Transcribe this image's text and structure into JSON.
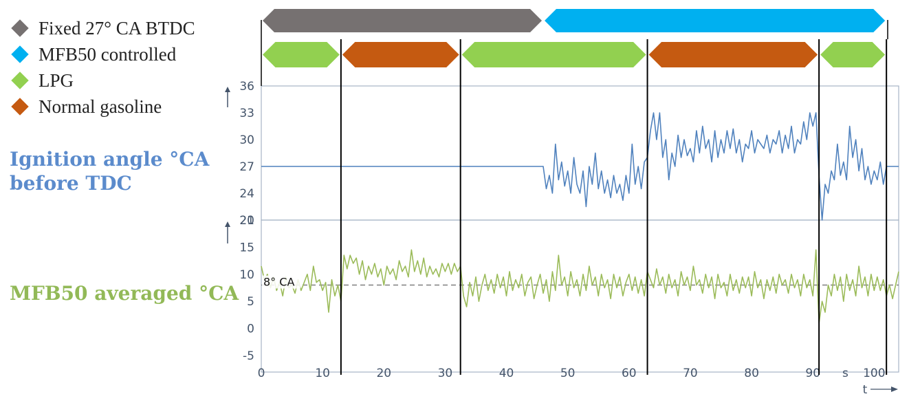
{
  "legend": [
    {
      "label": "Fixed 27° CA BTDC",
      "color": "#767171"
    },
    {
      "label": "MFB50 controlled",
      "color": "#00b0f0"
    },
    {
      "label": "LPG",
      "color": "#92d050"
    },
    {
      "label": "Normal gasoline",
      "color": "#c55a11"
    }
  ],
  "titles": {
    "ignition": "Ignition angle °CA before TDC",
    "mfb50": "MFB50 averaged °CA"
  },
  "chart_data": {
    "type": "line",
    "x_axis": {
      "min": 0,
      "max": 104,
      "ticks": [
        0,
        10,
        20,
        30,
        40,
        50,
        60,
        70,
        80,
        90,
        100
      ],
      "unit": "s",
      "label": "t"
    },
    "mode_bars": [
      {
        "label": "Fixed 27° CA BTDC",
        "from": 0,
        "to": 46,
        "color": "#767171"
      },
      {
        "label": "MFB50 controlled",
        "from": 46,
        "to": 102,
        "color": "#00b0f0"
      }
    ],
    "fuel_bars": [
      {
        "label": "LPG",
        "from": 0,
        "to": 13,
        "color": "#92d050"
      },
      {
        "label": "Normal gasoline",
        "from": 13,
        "to": 32.5,
        "color": "#c55a11"
      },
      {
        "label": "LPG",
        "from": 32.5,
        "to": 63,
        "color": "#92d050"
      },
      {
        "label": "Normal gasoline",
        "from": 63,
        "to": 91,
        "color": "#c55a11"
      },
      {
        "label": "LPG",
        "from": 91,
        "to": 102,
        "color": "#92d050"
      }
    ],
    "vertical_markers": [
      13,
      32.5,
      63,
      91,
      102
    ],
    "ignition": {
      "ylim": [
        21,
        36
      ],
      "yticks": [
        21,
        24,
        27,
        30,
        33,
        36
      ],
      "color": "#4f81bd",
      "points": [
        [
          0,
          27
        ],
        [
          46,
          27
        ],
        [
          46.5,
          24.5
        ],
        [
          47,
          26
        ],
        [
          47.5,
          24
        ],
        [
          48,
          29.5
        ],
        [
          48.5,
          25.5
        ],
        [
          49,
          27.5
        ],
        [
          49.5,
          24.8
        ],
        [
          50,
          26.5
        ],
        [
          50.5,
          24
        ],
        [
          51,
          28
        ],
        [
          51.5,
          25
        ],
        [
          52,
          24
        ],
        [
          52.5,
          26.5
        ],
        [
          53,
          22.5
        ],
        [
          53.5,
          27
        ],
        [
          54,
          25
        ],
        [
          54.5,
          28.5
        ],
        [
          55,
          24.5
        ],
        [
          55.5,
          26.5
        ],
        [
          56,
          24
        ],
        [
          56.5,
          25.5
        ],
        [
          57,
          23.5
        ],
        [
          57.5,
          26
        ],
        [
          58,
          24
        ],
        [
          58.5,
          25
        ],
        [
          59,
          23.2
        ],
        [
          59.5,
          26
        ],
        [
          60,
          24
        ],
        [
          60.5,
          29.5
        ],
        [
          61,
          25
        ],
        [
          61.5,
          27
        ],
        [
          62,
          24.5
        ],
        [
          62.5,
          27.5
        ],
        [
          63,
          28
        ],
        [
          63.5,
          31
        ],
        [
          64,
          33
        ],
        [
          64.5,
          30
        ],
        [
          65,
          33
        ],
        [
          65.5,
          28
        ],
        [
          66,
          30
        ],
        [
          66.5,
          25.5
        ],
        [
          67,
          28.5
        ],
        [
          67.5,
          27
        ],
        [
          68,
          30.5
        ],
        [
          68.5,
          28
        ],
        [
          69,
          30
        ],
        [
          69.5,
          28.2
        ],
        [
          70,
          29
        ],
        [
          70.5,
          27.5
        ],
        [
          71,
          31
        ],
        [
          71.5,
          28.5
        ],
        [
          72,
          31.5
        ],
        [
          72.5,
          29
        ],
        [
          73,
          30
        ],
        [
          73.5,
          27.5
        ],
        [
          74,
          31
        ],
        [
          74.5,
          28
        ],
        [
          75,
          30
        ],
        [
          75.5,
          28.5
        ],
        [
          76,
          31
        ],
        [
          76.5,
          29
        ],
        [
          77,
          31.2
        ],
        [
          77.5,
          28.5
        ],
        [
          78,
          30
        ],
        [
          78.5,
          27.5
        ],
        [
          79,
          29.5
        ],
        [
          79.5,
          29
        ],
        [
          80,
          31
        ],
        [
          80.5,
          28.5
        ],
        [
          81,
          30
        ],
        [
          81.5,
          29.5
        ],
        [
          82,
          29
        ],
        [
          82.5,
          30.5
        ],
        [
          83,
          28.5
        ],
        [
          83.5,
          30
        ],
        [
          84,
          29.5
        ],
        [
          84.5,
          31
        ],
        [
          85,
          28.5
        ],
        [
          85.5,
          30.5
        ],
        [
          86,
          29
        ],
        [
          86.5,
          31.5
        ],
        [
          87,
          28.5
        ],
        [
          87.5,
          30
        ],
        [
          88,
          29.5
        ],
        [
          88.5,
          32
        ],
        [
          89,
          30
        ],
        [
          89.5,
          33
        ],
        [
          90,
          31.5
        ],
        [
          90.5,
          33
        ],
        [
          91,
          26
        ],
        [
          91.5,
          21
        ],
        [
          92,
          25
        ],
        [
          92.5,
          24
        ],
        [
          93,
          26.5
        ],
        [
          93.5,
          25.5
        ],
        [
          94,
          29.5
        ],
        [
          94.5,
          26
        ],
        [
          95,
          27.5
        ],
        [
          95.5,
          25.5
        ],
        [
          96,
          31.5
        ],
        [
          96.5,
          28
        ],
        [
          97,
          30
        ],
        [
          97.5,
          26.5
        ],
        [
          98,
          29
        ],
        [
          98.5,
          25.5
        ],
        [
          99,
          27
        ],
        [
          99.5,
          25
        ],
        [
          100,
          26.5
        ],
        [
          100.5,
          25.5
        ],
        [
          101,
          27.5
        ],
        [
          101.5,
          25
        ],
        [
          102,
          27
        ],
        [
          104,
          27
        ]
      ]
    },
    "mfb50": {
      "ylim": [
        -5,
        20
      ],
      "yticks": [
        -5,
        0,
        5,
        10,
        15,
        20
      ],
      "reference_line": {
        "value": 8,
        "label": "8° CA"
      },
      "color": "#9bbb59",
      "points": [
        [
          0,
          11.5
        ],
        [
          0.5,
          9
        ],
        [
          1,
          10
        ],
        [
          1.5,
          7.5
        ],
        [
          2,
          9.5
        ],
        [
          2.5,
          7
        ],
        [
          3,
          8.5
        ],
        [
          3.5,
          6
        ],
        [
          4,
          9.5
        ],
        [
          4.5,
          7.5
        ],
        [
          5,
          8
        ],
        [
          5.5,
          6.5
        ],
        [
          6,
          9
        ],
        [
          6.5,
          7
        ],
        [
          7,
          8.5
        ],
        [
          7.5,
          10
        ],
        [
          8,
          7
        ],
        [
          8.5,
          11.5
        ],
        [
          9,
          8.5
        ],
        [
          9.5,
          9
        ],
        [
          10,
          7
        ],
        [
          10.5,
          8.5
        ],
        [
          11,
          3
        ],
        [
          11.5,
          9
        ],
        [
          12,
          6
        ],
        [
          12.5,
          8
        ],
        [
          13,
          5
        ],
        [
          13.5,
          13.5
        ],
        [
          14,
          11
        ],
        [
          14.5,
          13.5
        ],
        [
          15,
          12
        ],
        [
          15.5,
          13
        ],
        [
          16,
          10
        ],
        [
          16.5,
          12.5
        ],
        [
          17,
          9
        ],
        [
          17.5,
          11.5
        ],
        [
          18,
          10
        ],
        [
          18.5,
          12
        ],
        [
          19,
          9.5
        ],
        [
          19.5,
          11
        ],
        [
          20,
          8
        ],
        [
          20.5,
          11.5
        ],
        [
          21,
          10
        ],
        [
          21.5,
          11
        ],
        [
          22,
          9
        ],
        [
          22.5,
          12.5
        ],
        [
          23,
          10.5
        ],
        [
          23.5,
          11.5
        ],
        [
          24,
          9.5
        ],
        [
          24.5,
          14.5
        ],
        [
          25,
          10.5
        ],
        [
          25.5,
          12.5
        ],
        [
          26,
          10
        ],
        [
          26.5,
          13
        ],
        [
          27,
          9.5
        ],
        [
          27.5,
          11.5
        ],
        [
          28,
          10
        ],
        [
          28.5,
          11
        ],
        [
          29,
          9.5
        ],
        [
          29.5,
          12
        ],
        [
          30,
          10.5
        ],
        [
          30.5,
          12
        ],
        [
          31,
          10
        ],
        [
          31.5,
          12
        ],
        [
          32,
          10.5
        ],
        [
          32.5,
          11.5
        ],
        [
          33,
          6
        ],
        [
          33.5,
          4
        ],
        [
          34,
          8.5
        ],
        [
          34.5,
          6
        ],
        [
          35,
          9.5
        ],
        [
          35.5,
          5
        ],
        [
          36,
          8
        ],
        [
          36.5,
          10
        ],
        [
          37,
          7
        ],
        [
          37.5,
          9
        ],
        [
          38,
          6.5
        ],
        [
          38.5,
          10
        ],
        [
          39,
          7.5
        ],
        [
          39.5,
          9.5
        ],
        [
          40,
          6
        ],
        [
          40.5,
          10.5
        ],
        [
          41,
          7
        ],
        [
          41.5,
          9
        ],
        [
          42,
          7.5
        ],
        [
          42.5,
          10
        ],
        [
          43,
          6
        ],
        [
          43.5,
          8.5
        ],
        [
          44,
          9.5
        ],
        [
          44.5,
          5.5
        ],
        [
          45,
          8
        ],
        [
          45.5,
          10
        ],
        [
          46,
          6.5
        ],
        [
          46.5,
          9
        ],
        [
          47,
          5
        ],
        [
          47.5,
          10.5
        ],
        [
          48,
          7
        ],
        [
          48.5,
          13.5
        ],
        [
          49,
          8
        ],
        [
          49.5,
          9.5
        ],
        [
          50,
          6
        ],
        [
          50.5,
          10.5
        ],
        [
          51,
          7.5
        ],
        [
          51.5,
          9
        ],
        [
          52,
          6
        ],
        [
          52.5,
          10
        ],
        [
          53,
          7
        ],
        [
          53.5,
          11.5
        ],
        [
          54,
          8
        ],
        [
          54.5,
          9.5
        ],
        [
          55,
          6
        ],
        [
          55.5,
          10
        ],
        [
          56,
          7.5
        ],
        [
          56.5,
          9
        ],
        [
          57,
          5.5
        ],
        [
          57.5,
          10
        ],
        [
          58,
          7.5
        ],
        [
          58.5,
          9.5
        ],
        [
          59,
          6
        ],
        [
          59.5,
          8.5
        ],
        [
          60,
          10
        ],
        [
          60.5,
          7
        ],
        [
          61,
          9.5
        ],
        [
          61.5,
          6.5
        ],
        [
          62,
          9
        ],
        [
          62.5,
          6
        ],
        [
          63,
          10.5
        ],
        [
          63.5,
          9
        ],
        [
          64,
          7.5
        ],
        [
          64.5,
          11
        ],
        [
          65,
          8
        ],
        [
          65.5,
          9.5
        ],
        [
          66,
          6.5
        ],
        [
          66.5,
          10
        ],
        [
          67,
          7.5
        ],
        [
          67.5,
          9
        ],
        [
          68,
          6
        ],
        [
          68.5,
          10.5
        ],
        [
          69,
          8
        ],
        [
          69.5,
          9.5
        ],
        [
          70,
          7
        ],
        [
          70.5,
          11.5
        ],
        [
          71,
          8
        ],
        [
          71.5,
          9
        ],
        [
          72,
          6.5
        ],
        [
          72.5,
          10
        ],
        [
          73,
          7.5
        ],
        [
          73.5,
          9.5
        ],
        [
          74,
          5.5
        ],
        [
          74.5,
          10
        ],
        [
          75,
          7.5
        ],
        [
          75.5,
          8.5
        ],
        [
          76,
          6
        ],
        [
          76.5,
          10
        ],
        [
          77,
          7
        ],
        [
          77.5,
          9
        ],
        [
          78,
          6.5
        ],
        [
          78.5,
          9.5
        ],
        [
          79,
          7.5
        ],
        [
          79.5,
          9.5
        ],
        [
          80,
          6
        ],
        [
          80.5,
          10.5
        ],
        [
          81,
          7.5
        ],
        [
          81.5,
          9
        ],
        [
          82,
          5.5
        ],
        [
          82.5,
          9
        ],
        [
          83,
          7
        ],
        [
          83.5,
          9.5
        ],
        [
          84,
          6.5
        ],
        [
          84.5,
          10
        ],
        [
          85,
          8
        ],
        [
          85.5,
          9
        ],
        [
          86,
          6.5
        ],
        [
          86.5,
          10
        ],
        [
          87,
          7.5
        ],
        [
          87.5,
          9
        ],
        [
          88,
          6
        ],
        [
          88.5,
          10
        ],
        [
          89,
          7.5
        ],
        [
          89.5,
          9
        ],
        [
          90,
          6
        ],
        [
          90.5,
          14.5
        ],
        [
          91,
          1
        ],
        [
          91.5,
          5
        ],
        [
          92,
          3
        ],
        [
          92.5,
          8
        ],
        [
          93,
          6
        ],
        [
          93.5,
          10
        ],
        [
          94,
          7
        ],
        [
          94.5,
          9.5
        ],
        [
          95,
          5
        ],
        [
          95.5,
          10
        ],
        [
          96,
          7
        ],
        [
          96.5,
          9
        ],
        [
          97,
          6
        ],
        [
          97.5,
          11.5
        ],
        [
          98,
          7.5
        ],
        [
          98.5,
          9.5
        ],
        [
          99,
          6
        ],
        [
          99.5,
          10
        ],
        [
          100,
          7
        ],
        [
          100.5,
          9.5
        ],
        [
          101,
          7
        ],
        [
          101.5,
          9
        ],
        [
          102,
          6
        ],
        [
          102.5,
          8
        ],
        [
          103,
          5.5
        ],
        [
          103.5,
          8
        ],
        [
          104,
          10.5
        ]
      ]
    }
  }
}
